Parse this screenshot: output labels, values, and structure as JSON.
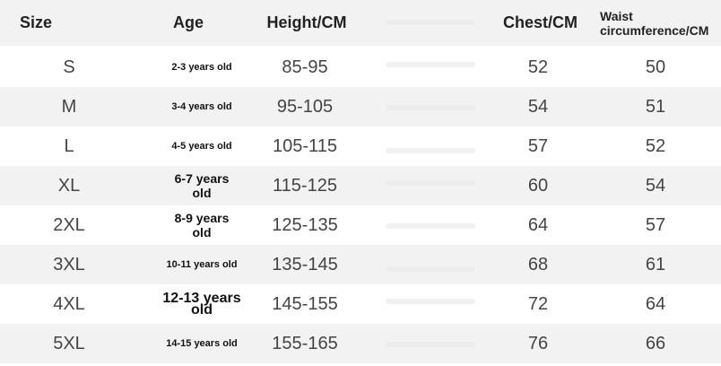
{
  "table": {
    "header": [
      "Size",
      "Age",
      "Height/CM",
      "Chest/CM",
      "Waist circumference/CM"
    ],
    "rows": [
      [
        "S",
        "2-3 years old",
        "85-95",
        52,
        50
      ],
      [
        "M",
        "3-4 years old",
        "95-105",
        54,
        51
      ],
      [
        "L",
        "4-5 years old",
        "105-115",
        57,
        52
      ],
      [
        "XL",
        "6-7 years old",
        "115-125",
        60,
        54
      ],
      [
        "2XL",
        "8-9 years old",
        "125-135",
        64,
        57
      ],
      [
        "3XL",
        "10-11 years old",
        "135-145",
        68,
        61
      ],
      [
        "4XL",
        "12-13 years old",
        "145-155",
        72,
        64
      ],
      [
        "5XL",
        "14-15 years old",
        "155-165",
        76,
        66
      ]
    ]
  }
}
